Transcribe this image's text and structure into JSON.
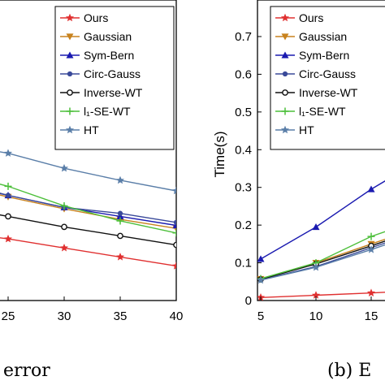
{
  "chart_data": [
    {
      "type": "line",
      "title": "",
      "xlabel": "",
      "ylabel": "",
      "caption": "error",
      "xlim": [
        22,
        40
      ],
      "ylim": [
        0,
        1
      ],
      "x_ticks": [
        25,
        30,
        35,
        40
      ],
      "grid": false,
      "legend_position": "top-right",
      "series": [
        {
          "name": "Ours",
          "color": "#e03030",
          "marker": "star",
          "x": [
            22,
            25,
            30,
            35,
            40
          ],
          "y": [
            0.22,
            0.205,
            0.175,
            0.145,
            0.115
          ]
        },
        {
          "name": "Gaussian",
          "color": "#c8821e",
          "marker": "triangle-down",
          "x": [
            22,
            25,
            30,
            35,
            40
          ],
          "y": [
            0.37,
            0.345,
            0.305,
            0.27,
            0.24
          ]
        },
        {
          "name": "Sym-Bern",
          "color": "#1a1ab0",
          "marker": "triangle-up",
          "x": [
            22,
            25,
            30,
            35,
            40
          ],
          "y": [
            0.375,
            0.35,
            0.31,
            0.28,
            0.25
          ]
        },
        {
          "name": "Circ-Gauss",
          "color": "#3a4a9a",
          "marker": "circle",
          "x": [
            22,
            25,
            30,
            35,
            40
          ],
          "y": [
            0.38,
            0.35,
            0.31,
            0.29,
            0.26
          ]
        },
        {
          "name": "Inverse-WT",
          "color": "#111111",
          "marker": "circle-open",
          "x": [
            22,
            25,
            30,
            35,
            40
          ],
          "y": [
            0.3,
            0.28,
            0.245,
            0.215,
            0.185
          ]
        },
        {
          "name": "l₁-SE-WT",
          "color": "#4cbf3a",
          "marker": "plus",
          "x": [
            22,
            25,
            30,
            35,
            40
          ],
          "y": [
            0.41,
            0.38,
            0.315,
            0.265,
            0.225
          ]
        },
        {
          "name": "HT",
          "color": "#5a7ea8",
          "marker": "star",
          "x": [
            22,
            25,
            30,
            35,
            40
          ],
          "y": [
            0.51,
            0.49,
            0.44,
            0.4,
            0.365
          ]
        }
      ]
    },
    {
      "type": "line",
      "title": "",
      "xlabel": "",
      "ylabel": "Time(s)",
      "caption": "(b) E",
      "xlim": [
        5,
        17
      ],
      "ylim": [
        0,
        0.8
      ],
      "x_ticks": [
        5,
        10,
        15
      ],
      "y_ticks": [
        0,
        0.1,
        0.2,
        0.3,
        0.4,
        0.5,
        0.6,
        0.7
      ],
      "grid": false,
      "legend_position": "top-left",
      "series": [
        {
          "name": "Ours",
          "color": "#e03030",
          "marker": "star",
          "x": [
            5,
            10,
            15,
            17
          ],
          "y": [
            0.008,
            0.014,
            0.02,
            0.023
          ]
        },
        {
          "name": "Gaussian",
          "color": "#c8821e",
          "marker": "triangle-down",
          "x": [
            5,
            10,
            15,
            17
          ],
          "y": [
            0.057,
            0.1,
            0.15,
            0.17
          ]
        },
        {
          "name": "Sym-Bern",
          "color": "#1a1ab0",
          "marker": "triangle-up",
          "x": [
            5,
            10,
            15,
            17
          ],
          "y": [
            0.11,
            0.195,
            0.295,
            0.33
          ]
        },
        {
          "name": "Circ-Gauss",
          "color": "#3a4a9a",
          "marker": "circle",
          "x": [
            5,
            10,
            15,
            17
          ],
          "y": [
            0.055,
            0.09,
            0.14,
            0.16
          ]
        },
        {
          "name": "Inverse-WT",
          "color": "#111111",
          "marker": "circle-open",
          "x": [
            5,
            10,
            15,
            17
          ],
          "y": [
            0.056,
            0.097,
            0.145,
            0.165
          ]
        },
        {
          "name": "l₁-SE-WT",
          "color": "#4cbf3a",
          "marker": "plus",
          "x": [
            5,
            10,
            15,
            17
          ],
          "y": [
            0.058,
            0.1,
            0.17,
            0.19
          ]
        },
        {
          "name": "HT",
          "color": "#5a7ea8",
          "marker": "star",
          "x": [
            5,
            10,
            15,
            17
          ],
          "y": [
            0.054,
            0.088,
            0.135,
            0.155
          ]
        }
      ]
    }
  ]
}
